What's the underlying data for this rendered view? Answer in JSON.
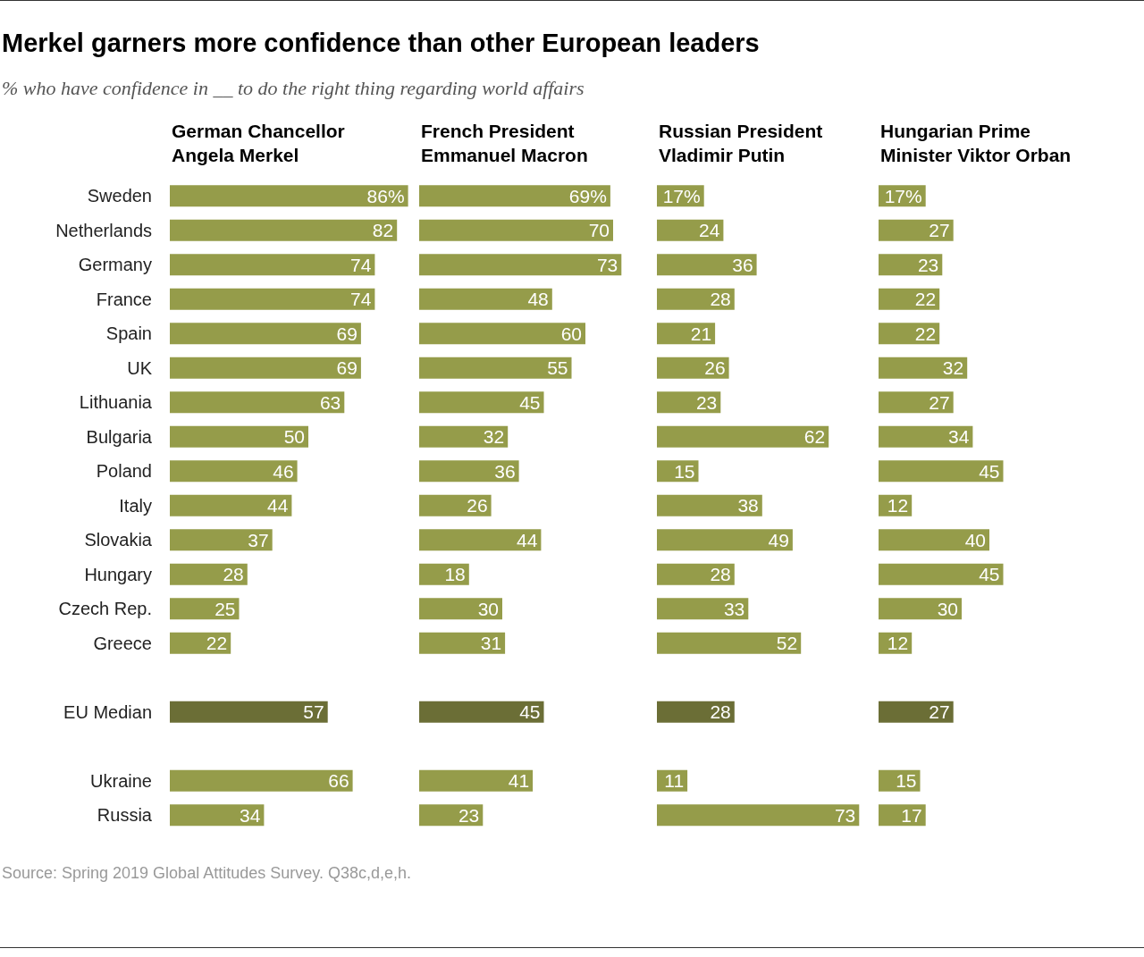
{
  "chart_data": [
    {
      "type": "bar",
      "orientation": "horizontal",
      "title": "Merkel garners more confidence than other European leaders",
      "subtitle": "% who have confidence in __ to do the right thing regarding world affairs",
      "xlabel": "German Chancellor\nAngela Merkel",
      "tick_labels": "y",
      "categories": [
        "Sweden",
        "Netherlands",
        "Germany",
        "France",
        "Spain",
        "UK",
        "Lithuania",
        "Bulgaria",
        "Poland",
        "Italy",
        "Slovakia",
        "Hungary",
        "Czech Rep.",
        "Greece",
        null,
        "EU Median",
        null,
        "Ukraine",
        "Russia"
      ],
      "values": [
        86,
        82,
        74,
        74,
        69,
        69,
        63,
        50,
        46,
        44,
        37,
        28,
        25,
        22,
        null,
        57,
        null,
        66,
        34
      ],
      "value_labels": [
        "86%",
        "82",
        "74",
        "74",
        "69",
        "69",
        "63",
        "50",
        "46",
        "44",
        "37",
        "28",
        "25",
        "22",
        null,
        "57",
        null,
        "66",
        "34"
      ],
      "colors": [
        "#959c4a",
        "#959c4a",
        "#959c4a",
        "#959c4a",
        "#959c4a",
        "#959c4a",
        "#959c4a",
        "#959c4a",
        "#959c4a",
        "#959c4a",
        "#959c4a",
        "#959c4a",
        "#959c4a",
        "#959c4a",
        null,
        "#6b6e36",
        null,
        "#959c4a",
        "#959c4a"
      ],
      "annotations": [
        "Source: Spring 2019 Global Attitudes Survey. Q38c,d,e,h."
      ]
    },
    {
      "type": "bar",
      "orientation": "horizontal",
      "xlabel": "French President\nEmmanuel Macron",
      "tick_labels": false,
      "values": [
        69,
        70,
        73,
        48,
        60,
        55,
        45,
        32,
        36,
        26,
        44,
        18,
        30,
        31,
        null,
        45,
        null,
        41,
        23
      ],
      "value_labels": [
        "69%",
        "70",
        "73",
        "48",
        "60",
        "55",
        "45",
        "32",
        "36",
        "26",
        "44",
        "18",
        "30",
        "31",
        null,
        "45",
        null,
        "41",
        "23"
      ],
      "colors": [
        "#959c4a",
        "#959c4a",
        "#959c4a",
        "#959c4a",
        "#959c4a",
        "#959c4a",
        "#959c4a",
        "#959c4a",
        "#959c4a",
        "#959c4a",
        "#959c4a",
        "#959c4a",
        "#959c4a",
        "#959c4a",
        null,
        "#6b6e36",
        null,
        "#959c4a",
        "#959c4a"
      ]
    },
    {
      "type": "bar",
      "orientation": "horizontal",
      "xlabel": "Russian President\nVladimir Putin",
      "tick_labels": false,
      "values": [
        17,
        24,
        36,
        28,
        21,
        26,
        23,
        62,
        15,
        38,
        49,
        28,
        33,
        52,
        null,
        28,
        null,
        11,
        73
      ],
      "value_labels": [
        "17%",
        "24",
        "36",
        "28",
        "21",
        "26",
        "23",
        "62",
        "15",
        "38",
        "49",
        "28",
        "33",
        "52",
        null,
        "28",
        null,
        "11",
        "73"
      ],
      "colors": [
        "#959c4a",
        "#959c4a",
        "#959c4a",
        "#959c4a",
        "#959c4a",
        "#959c4a",
        "#959c4a",
        "#959c4a",
        "#959c4a",
        "#959c4a",
        "#959c4a",
        "#959c4a",
        "#959c4a",
        "#959c4a",
        null,
        "#6b6e36",
        null,
        "#959c4a",
        "#959c4a"
      ]
    },
    {
      "type": "bar",
      "orientation": "horizontal",
      "xlabel": "Hungarian Prime\nMinister Viktor Orban",
      "tick_labels": false,
      "values": [
        17,
        27,
        23,
        22,
        22,
        32,
        27,
        34,
        45,
        12,
        40,
        45,
        30,
        12,
        null,
        27,
        null,
        15,
        17
      ],
      "value_labels": [
        "17%",
        "27",
        "23",
        "22",
        "22",
        "32",
        "27",
        "34",
        "45",
        "12",
        "40",
        "45",
        "30",
        "12",
        null,
        "27",
        null,
        "15",
        "17"
      ],
      "colors": [
        "#959c4a",
        "#959c4a",
        "#959c4a",
        "#959c4a",
        "#959c4a",
        "#959c4a",
        "#959c4a",
        "#959c4a",
        "#959c4a",
        "#959c4a",
        "#959c4a",
        "#959c4a",
        "#959c4a",
        "#959c4a",
        null,
        "#6b6e36",
        null,
        "#959c4a",
        "#959c4a"
      ]
    }
  ]
}
